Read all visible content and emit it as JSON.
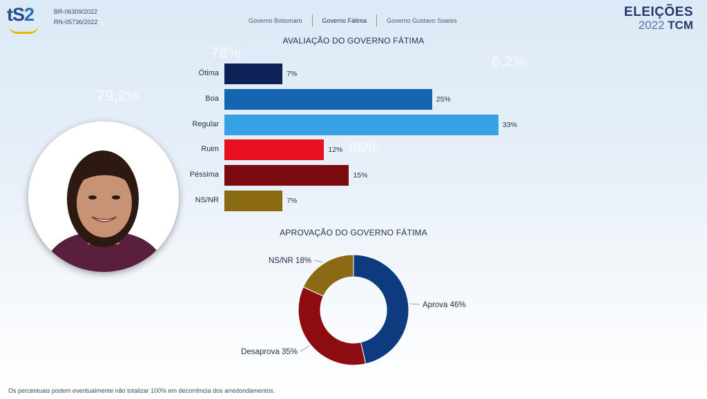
{
  "header": {
    "logo_text_a": "tS",
    "logo_text_b": "2",
    "registration_br": "BR-06309/2022",
    "registration_rn": "RN-05736/2022",
    "tabs": [
      {
        "label": "Governo Bolsonaro",
        "active": false
      },
      {
        "label": "Governo Fátima",
        "active": true
      },
      {
        "label": "Governo Gustavo Soares",
        "active": false
      }
    ],
    "brand_line1": "ELEIÇÕES",
    "brand_year": "2022",
    "brand_sub": "TCM"
  },
  "footnote": "Os percentuais podem eventualmente não totalizar 100% em decorrência dos arredondamentos.",
  "chart_data": [
    {
      "type": "bar",
      "orientation": "horizontal",
      "title": "AVALIAÇÃO DO GOVERNO FÁTIMA",
      "categories": [
        "Ótima",
        "Boa",
        "Regular",
        "Ruim",
        "Péssima",
        "NS/NR"
      ],
      "values": [
        7,
        25,
        33,
        12,
        15,
        7
      ],
      "value_labels": [
        "7%",
        "25%",
        "33%",
        "12%",
        "15%",
        "7%"
      ],
      "colors": [
        "#0c2257",
        "#1565b0",
        "#37a1e6",
        "#e8101e",
        "#7a0a0f",
        "#8a6a12"
      ],
      "xlim": [
        0,
        33
      ]
    },
    {
      "type": "pie",
      "donut": true,
      "title": "APROVAÇÃO DO GOVERNO FÁTIMA",
      "categories": [
        "Aprova",
        "Desaprova",
        "NS/NR"
      ],
      "values": [
        46,
        35,
        18
      ],
      "labels": [
        "Aprova 46%",
        "Desaprova 35%",
        "NS/NR 18%"
      ],
      "colors": [
        "#0e3a80",
        "#8c0c12",
        "#8a6a12"
      ]
    }
  ]
}
